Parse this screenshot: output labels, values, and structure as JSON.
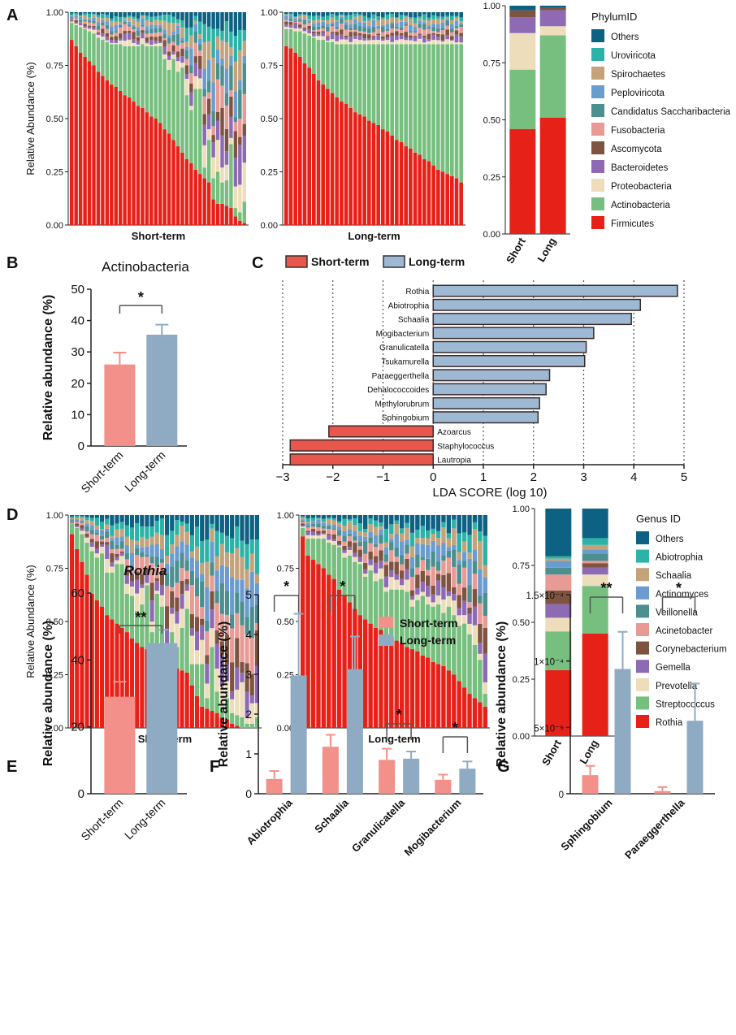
{
  "colors": {
    "short": "#F4908A",
    "long": "#8FABC3",
    "lda_short": "#E8564C",
    "lda_long": "#9EB9D4",
    "axis": "#222222",
    "grid": "#555555"
  },
  "panel_labels": [
    "A",
    "B",
    "C",
    "D",
    "E",
    "F",
    "G"
  ],
  "phylum_legend": {
    "title": "PhylumID",
    "items": [
      {
        "name": "Others",
        "color": "#0D6183"
      },
      {
        "name": "Uroviricota",
        "color": "#2BB3A7"
      },
      {
        "name": "Spirochaetes",
        "color": "#C4A27A"
      },
      {
        "name": "Peploviricota",
        "color": "#6A9CD0"
      },
      {
        "name": "Candidatus Saccharibacteria",
        "color": "#4C8F8F"
      },
      {
        "name": "Fusobacteria",
        "color": "#E89A95"
      },
      {
        "name": "Ascomycota",
        "color": "#7E5340"
      },
      {
        "name": "Bacteroidetes",
        "color": "#8E6AB5"
      },
      {
        "name": "Proteobacteria",
        "color": "#EEDDBB"
      },
      {
        "name": "Actinobacteria",
        "color": "#76BF7E"
      },
      {
        "name": "Firmicutes",
        "color": "#E62117"
      }
    ]
  },
  "genus_legend": {
    "title": "Genus ID",
    "items": [
      {
        "name": "Others",
        "color": "#0D6183"
      },
      {
        "name": "Abiotrophia",
        "color": "#2BB3A7"
      },
      {
        "name": "Schaalia",
        "color": "#C4A27A"
      },
      {
        "name": "Actinomyces",
        "color": "#6A9CD0"
      },
      {
        "name": "Veillonella",
        "color": "#4C8F8F"
      },
      {
        "name": "Acinetobacter",
        "color": "#E89A95"
      },
      {
        "name": "Corynebacterium",
        "color": "#7E5340"
      },
      {
        "name": "Gemella",
        "color": "#8E6AB5"
      },
      {
        "name": "Prevotella",
        "color": "#EEDDBB"
      },
      {
        "name": "Streptococcus",
        "color": "#76BF7E"
      },
      {
        "name": "Rothia",
        "color": "#E62117"
      }
    ]
  },
  "chart_data": [
    {
      "id": "A-short",
      "panel": "A",
      "type": "bar",
      "subtype": "stacked-100",
      "xlabel": "Short-term",
      "ylabel": "Relative Abundance (%)",
      "ylim": [
        0,
        1
      ],
      "yticks": [
        "0.00",
        "0.25",
        "0.50",
        "0.75",
        "1.00"
      ],
      "firmicutes": [
        0.87,
        0.84,
        0.81,
        0.79,
        0.77,
        0.75,
        0.72,
        0.7,
        0.68,
        0.66,
        0.65,
        0.63,
        0.61,
        0.6,
        0.58,
        0.56,
        0.55,
        0.53,
        0.51,
        0.5,
        0.48,
        0.45,
        0.43,
        0.4,
        0.37,
        0.34,
        0.31,
        0.29,
        0.26,
        0.24,
        0.22,
        0.2,
        0.12,
        0.1,
        0.1,
        0.09,
        0.08,
        0.04,
        0.02,
        0.01
      ],
      "actinobacteria": [
        0.08,
        0.1,
        0.12,
        0.13,
        0.14,
        0.15,
        0.16,
        0.17,
        0.18,
        0.19,
        0.2,
        0.22,
        0.23,
        0.24,
        0.26,
        0.28,
        0.3,
        0.31,
        0.33,
        0.34,
        0.36,
        0.33,
        0.3,
        0.38,
        0.35,
        0.4,
        0.3,
        0.25,
        0.38,
        0.4,
        0.05,
        0.2,
        0.1,
        0.15,
        0.1,
        0.12,
        0.3,
        0.04,
        0.04,
        0.1
      ]
    },
    {
      "id": "A-long",
      "panel": "A",
      "type": "bar",
      "subtype": "stacked-100",
      "xlabel": "Long-term",
      "ylabel": "",
      "ylim": [
        0,
        1
      ],
      "yticks": [
        "0.00",
        "0.25",
        "0.50",
        "0.75",
        "1.00"
      ],
      "firmicutes": [
        0.84,
        0.83,
        0.81,
        0.79,
        0.76,
        0.74,
        0.71,
        0.68,
        0.66,
        0.64,
        0.62,
        0.6,
        0.58,
        0.57,
        0.55,
        0.53,
        0.52,
        0.51,
        0.49,
        0.48,
        0.47,
        0.45,
        0.44,
        0.42,
        0.4,
        0.39,
        0.37,
        0.36,
        0.34,
        0.33,
        0.31,
        0.3,
        0.28,
        0.26,
        0.25,
        0.24,
        0.23,
        0.22,
        0.2
      ],
      "actinobacteria": [
        0.08,
        0.09,
        0.1,
        0.12,
        0.14,
        0.15,
        0.17,
        0.19,
        0.21,
        0.22,
        0.24,
        0.25,
        0.27,
        0.28,
        0.3,
        0.32,
        0.33,
        0.34,
        0.36,
        0.37,
        0.38,
        0.4,
        0.41,
        0.43,
        0.45,
        0.46,
        0.48,
        0.49,
        0.51,
        0.52,
        0.54,
        0.55,
        0.57,
        0.59,
        0.6,
        0.61,
        0.62,
        0.63,
        0.65
      ]
    },
    {
      "id": "A-summary",
      "panel": "A",
      "type": "bar",
      "subtype": "stacked-100",
      "categories": [
        "Short",
        "Long"
      ],
      "ylim": [
        0,
        1
      ],
      "yticks": [
        "0.00",
        "0.25",
        "0.50",
        "0.75",
        "1.00"
      ],
      "series": [
        {
          "name": "Firmicutes",
          "values": [
            0.46,
            0.51
          ]
        },
        {
          "name": "Actinobacteria",
          "values": [
            0.26,
            0.36
          ]
        },
        {
          "name": "Proteobacteria",
          "values": [
            0.16,
            0.04
          ]
        },
        {
          "name": "Bacteroidetes",
          "values": [
            0.07,
            0.07
          ]
        },
        {
          "name": "Ascomycota",
          "values": [
            0.03,
            0.01
          ]
        },
        {
          "name": "Others",
          "values": [
            0.02,
            0.01
          ]
        }
      ]
    },
    {
      "id": "B",
      "panel": "B",
      "type": "bar",
      "title": "Actinobacteria",
      "categories": [
        "Short-term",
        "Long-term"
      ],
      "values": [
        26,
        35.5
      ],
      "errors": [
        3.8,
        3.2
      ],
      "ylabel": "Relative abundance (%)",
      "ylim": [
        0,
        50
      ],
      "yticks": [
        "0",
        "10",
        "20",
        "30",
        "40",
        "50"
      ],
      "significance": "*"
    },
    {
      "id": "C",
      "panel": "C",
      "type": "bar",
      "orientation": "horizontal",
      "xlabel": "LDA SCORE (log 10)",
      "xlim": [
        -3,
        5
      ],
      "xticks": [
        "−3",
        "−2",
        "−1",
        "0",
        "1",
        "2",
        "3",
        "4",
        "5"
      ],
      "legend": [
        "Short-term",
        "Long-term"
      ],
      "categories": [
        "Rothia",
        "Abiotrophia",
        "Schaalia",
        "Mogibacterium",
        "Granulicatella",
        "Tsukamurella",
        "Paraeggerthella",
        "Dehalococcoides",
        "Methylorubrum",
        "Sphingobium",
        "Azoarcus",
        "Staphylococcus",
        "Lautropia"
      ],
      "values": [
        4.87,
        4.13,
        3.95,
        3.2,
        3.05,
        3.02,
        2.32,
        2.25,
        2.12,
        2.09,
        -2.08,
        -2.85,
        -2.85
      ],
      "groups": [
        "Long-term",
        "Long-term",
        "Long-term",
        "Long-term",
        "Long-term",
        "Long-term",
        "Long-term",
        "Long-term",
        "Long-term",
        "Long-term",
        "Short-term",
        "Short-term",
        "Short-term"
      ]
    },
    {
      "id": "D-short",
      "panel": "D",
      "type": "bar",
      "subtype": "stacked-100",
      "xlabel": "Short-term",
      "ylabel": "Relative Abundance (%)",
      "ylim": [
        0,
        1
      ],
      "yticks": [
        "0.00",
        "0.25",
        "0.50",
        "0.75",
        "1.00"
      ],
      "rothia": [
        0.91,
        0.84,
        0.78,
        0.72,
        0.63,
        0.6,
        0.57,
        0.53,
        0.51,
        0.49,
        0.47,
        0.45,
        0.42,
        0.4,
        0.38,
        0.37,
        0.35,
        0.33,
        0.32,
        0.31,
        0.3,
        0.28,
        0.27,
        0.26,
        0.2,
        0.15,
        0.1,
        0.09,
        0.08,
        0.07,
        0.05,
        0.04,
        0.02,
        0.01,
        0,
        0,
        0,
        0
      ],
      "streptococcus": [
        0.05,
        0.1,
        0.13,
        0.15,
        0.2,
        0.2,
        0.25,
        0.2,
        0.22,
        0.28,
        0.3,
        0.18,
        0.2,
        0.15,
        0.2,
        0.3,
        0.1,
        0.3,
        0.25,
        0.05,
        0.15,
        0.1,
        0.2,
        0.3,
        0.1,
        0.15,
        0.2,
        0.05,
        0.3,
        0.1,
        0.05,
        0.1,
        0.05,
        0.05,
        0.05,
        0.02,
        0.02,
        0.05
      ]
    },
    {
      "id": "D-long",
      "panel": "D",
      "type": "bar",
      "subtype": "stacked-100",
      "xlabel": "Long-term",
      "ylabel": "",
      "ylim": [
        0,
        1
      ],
      "yticks": [
        "0.00",
        "0.25",
        "0.50",
        "0.75",
        "1.00"
      ],
      "rothia": [
        0.9,
        0.81,
        0.79,
        0.77,
        0.75,
        0.72,
        0.7,
        0.65,
        0.62,
        0.59,
        0.56,
        0.53,
        0.51,
        0.49,
        0.47,
        0.46,
        0.44,
        0.43,
        0.41,
        0.4,
        0.38,
        0.37,
        0.36,
        0.34,
        0.33,
        0.31,
        0.3,
        0.29,
        0.27,
        0.25,
        0.22,
        0.19,
        0.16,
        0.14,
        0.12,
        0.1
      ],
      "streptococcus": [
        0.04,
        0.08,
        0.1,
        0.12,
        0.14,
        0.15,
        0.16,
        0.2,
        0.18,
        0.22,
        0.22,
        0.24,
        0.2,
        0.25,
        0.22,
        0.24,
        0.2,
        0.22,
        0.24,
        0.25,
        0.26,
        0.2,
        0.24,
        0.28,
        0.25,
        0.26,
        0.28,
        0.25,
        0.3,
        0.28,
        0.26,
        0.3,
        0.28,
        0.25,
        0.2,
        0.06
      ]
    },
    {
      "id": "D-summary",
      "panel": "D",
      "type": "bar",
      "subtype": "stacked-100",
      "categories": [
        "Short",
        "Long"
      ],
      "ylim": [
        0,
        1
      ],
      "yticks": [
        "0.00",
        "0.25",
        "0.50",
        "0.75",
        "1.00"
      ],
      "series": [
        {
          "name": "Rothia",
          "values": [
            0.29,
            0.45
          ]
        },
        {
          "name": "Streptococcus",
          "values": [
            0.17,
            0.21
          ]
        },
        {
          "name": "Prevotella",
          "values": [
            0.06,
            0.05
          ]
        },
        {
          "name": "Gemella",
          "values": [
            0.06,
            0.03
          ]
        },
        {
          "name": "Corynebacterium",
          "values": [
            0.06,
            0.02
          ]
        },
        {
          "name": "Acinetobacter",
          "values": [
            0.07,
            0.01
          ]
        },
        {
          "name": "Veillonella",
          "values": [
            0.03,
            0.03
          ]
        },
        {
          "name": "Actinomyces",
          "values": [
            0.03,
            0.02
          ]
        },
        {
          "name": "Schaalia",
          "values": [
            0.01,
            0.02
          ]
        },
        {
          "name": "Abiotrophia",
          "values": [
            0.01,
            0.03
          ]
        },
        {
          "name": "Others",
          "values": [
            0.21,
            0.13
          ]
        }
      ]
    },
    {
      "id": "E",
      "panel": "E",
      "type": "bar",
      "title": "Rothia",
      "categories": [
        "Short-term",
        "Long-term"
      ],
      "values": [
        29,
        45
      ],
      "errors": [
        4.5,
        4
      ],
      "ylabel": "Relative abundance (%)",
      "ylim": [
        0,
        60
      ],
      "yticks": [
        "0",
        "20",
        "40",
        "60"
      ],
      "significance": "**"
    },
    {
      "id": "F",
      "panel": "F",
      "type": "bar",
      "subtype": "grouped",
      "categories": [
        "Abiotrophia",
        "Schaalia",
        "Granulicatella",
        "Mogibacterium"
      ],
      "ylabel": "Relative abundance (%)",
      "ylim": [
        0,
        5
      ],
      "yticks": [
        "0",
        "1",
        "2",
        "3",
        "4",
        "5"
      ],
      "legend": [
        "Short-term",
        "Long-term"
      ],
      "series": [
        {
          "name": "Short-term",
          "values": [
            0.37,
            1.18,
            0.85,
            0.35
          ],
          "errors": [
            0.2,
            0.3,
            0.28,
            0.13
          ]
        },
        {
          "name": "Long-term",
          "values": [
            2.97,
            3.13,
            0.88,
            0.63
          ],
          "errors": [
            1.55,
            0.82,
            0.18,
            0.18
          ]
        }
      ],
      "significance": [
        "*",
        "*",
        "*",
        "*"
      ]
    },
    {
      "id": "G",
      "panel": "G",
      "type": "bar",
      "subtype": "grouped",
      "categories": [
        "Sphingobium",
        "Paraeggerthella"
      ],
      "ylabel": "Relative abundance (%)",
      "ylim": [
        0,
        0.00015
      ],
      "yticks": [
        "0",
        "5×10⁻⁵",
        "1×10⁻⁴",
        "1.5×10⁻⁴"
      ],
      "series": [
        {
          "name": "Short-term",
          "values": [
            1.4e-05,
            2e-06
          ],
          "errors": [
            7e-06,
            3e-06
          ]
        },
        {
          "name": "Long-term",
          "values": [
            9.4e-05,
            5.5e-05
          ],
          "errors": [
            2.8e-05,
            2.8e-05
          ]
        }
      ],
      "significance": [
        "**",
        "*"
      ]
    }
  ]
}
